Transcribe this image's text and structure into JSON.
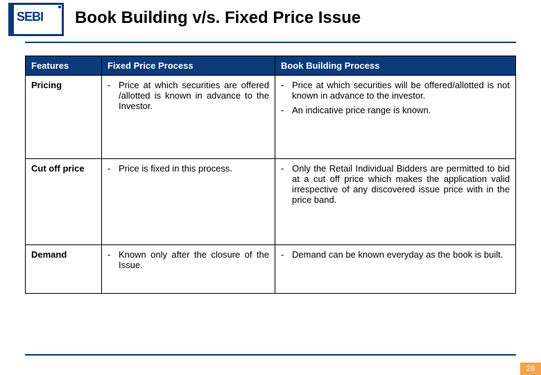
{
  "logo_text": "SEBI",
  "title": "Book Building v/s. Fixed Price Issue",
  "page_number": "28",
  "colors": {
    "brand_blue": "#0b3b7a",
    "accent_orange": "#f4a44a",
    "text": "#000000",
    "background": "#ffffff"
  },
  "table": {
    "columns": [
      "Features",
      "Fixed Price Process",
      "Book Building Process"
    ],
    "rows": [
      {
        "feature": "Pricing",
        "fixed": [
          "Price at which securities are offered /allotted is known in advance to the Investor."
        ],
        "book": [
          "Price at which securities will be offered/allotted is not known in advance to the investor.",
          "An indicative price range is known."
        ]
      },
      {
        "feature": "Cut off price",
        "fixed": [
          "Price is fixed in this process."
        ],
        "book": [
          "Only the Retail Individual Bidders are permitted to bid at a cut off price which makes the application valid irrespective of any discovered issue price with in the price band."
        ]
      },
      {
        "feature": "Demand",
        "fixed": [
          "Known only after the closure of the Issue."
        ],
        "book": [
          "Demand can be known everyday as the book is built."
        ]
      }
    ]
  }
}
